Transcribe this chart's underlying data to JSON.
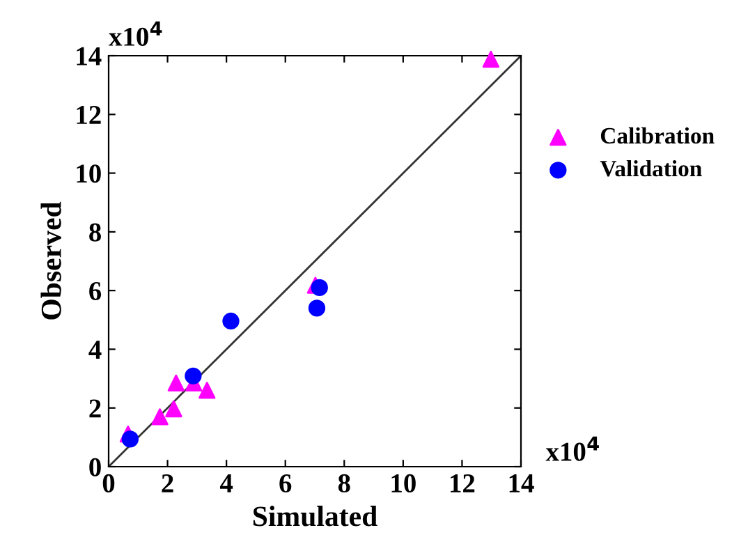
{
  "chart_data": {
    "type": "scatter",
    "xlabel": "Simulated",
    "ylabel": "Observed",
    "xlim": [
      0,
      14
    ],
    "ylim": [
      0,
      14
    ],
    "xticks": [
      0,
      2,
      4,
      6,
      8,
      10,
      12,
      14
    ],
    "yticks": [
      0,
      2,
      4,
      6,
      8,
      10,
      12,
      14
    ],
    "annotations": [
      "x10$^{4}$",
      "x10$^{4}$"
    ],
    "legend": "right",
    "grid": false,
    "series": [
      {
        "type": "line",
        "color": "#333333",
        "x": [
          0,
          14
        ],
        "values": [
          0,
          14
        ],
        "marker": "none"
      },
      {
        "name": "Calibration",
        "color": "#ff00ff",
        "marker": "triangle",
        "x": [
          0.66,
          1.74,
          2.21,
          2.29,
          2.89,
          3.34,
          7.02,
          12.98
        ],
        "values": [
          1.11,
          1.7,
          1.97,
          2.85,
          2.85,
          2.6,
          6.18,
          13.88
        ]
      },
      {
        "name": "Validation",
        "color": "#0000ff",
        "marker": "circle",
        "x": [
          0.73,
          2.87,
          4.15,
          7.07,
          7.16
        ],
        "values": [
          0.94,
          3.09,
          4.96,
          5.4,
          6.1
        ]
      }
    ]
  }
}
